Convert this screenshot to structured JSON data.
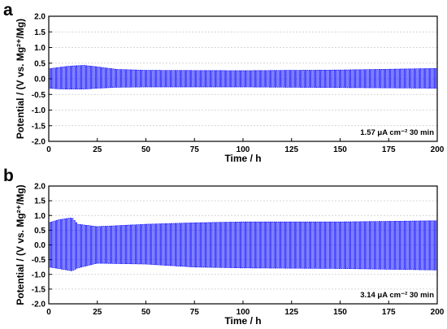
{
  "chart_data": [
    {
      "type": "line",
      "panel_label": "a",
      "xlabel": "Time / h",
      "ylabel": "Potential / (V vs. Mg²⁺/Mg)",
      "xlim": [
        0,
        200
      ],
      "ylim": [
        -2.0,
        2.0
      ],
      "xticks": [
        0,
        25,
        50,
        75,
        100,
        125,
        150,
        175,
        200
      ],
      "yticks": [
        "-2.0",
        "-1.5",
        "-1.0",
        "-0.5",
        "0.0",
        "0.5",
        "1.0",
        "1.5",
        "2.0"
      ],
      "grid": "horizontal dotted",
      "annotation": "1.57 μA cm⁻² 30 min",
      "color": "#0000ff",
      "cycle_period_h": 1,
      "envelope": [
        {
          "x": 0,
          "y_max": 0.32,
          "y_min": -0.3
        },
        {
          "x": 5,
          "y_max": 0.36,
          "y_min": -0.32
        },
        {
          "x": 10,
          "y_max": 0.4,
          "y_min": -0.33
        },
        {
          "x": 18,
          "y_max": 0.43,
          "y_min": -0.33
        },
        {
          "x": 25,
          "y_max": 0.38,
          "y_min": -0.3
        },
        {
          "x": 35,
          "y_max": 0.3,
          "y_min": -0.27
        },
        {
          "x": 50,
          "y_max": 0.27,
          "y_min": -0.26
        },
        {
          "x": 100,
          "y_max": 0.26,
          "y_min": -0.26
        },
        {
          "x": 150,
          "y_max": 0.28,
          "y_min": -0.28
        },
        {
          "x": 200,
          "y_max": 0.33,
          "y_min": -0.3
        }
      ]
    },
    {
      "type": "line",
      "panel_label": "b",
      "xlabel": "Time / h",
      "ylabel": "Potential / (V vs. Mg²⁺/Mg)",
      "xlim": [
        0,
        200
      ],
      "ylim": [
        -2.0,
        2.0
      ],
      "xticks": [
        0,
        25,
        50,
        75,
        100,
        125,
        150,
        175,
        200
      ],
      "yticks": [
        "-2.0",
        "-1.5",
        "-1.0",
        "-0.5",
        "0.0",
        "0.5",
        "1.0",
        "1.5",
        "2.0"
      ],
      "grid": "horizontal dotted",
      "annotation": "3.14 μA cm⁻² 30 min",
      "color": "#0000ff",
      "cycle_period_h": 1,
      "envelope": [
        {
          "x": 0,
          "y_max": 0.75,
          "y_min": -0.75
        },
        {
          "x": 5,
          "y_max": 0.85,
          "y_min": -0.8
        },
        {
          "x": 12,
          "y_max": 0.92,
          "y_min": -0.88
        },
        {
          "x": 15,
          "y_max": 0.7,
          "y_min": -0.78
        },
        {
          "x": 25,
          "y_max": 0.62,
          "y_min": -0.62
        },
        {
          "x": 50,
          "y_max": 0.7,
          "y_min": -0.65
        },
        {
          "x": 75,
          "y_max": 0.75,
          "y_min": -0.75
        },
        {
          "x": 100,
          "y_max": 0.78,
          "y_min": -0.78
        },
        {
          "x": 150,
          "y_max": 0.78,
          "y_min": -0.8
        },
        {
          "x": 200,
          "y_max": 0.82,
          "y_min": -0.85
        }
      ]
    }
  ]
}
